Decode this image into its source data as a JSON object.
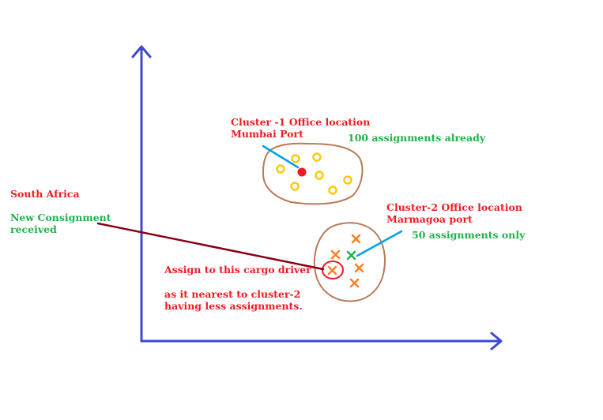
{
  "colors": {
    "axis": "#3F48CC",
    "red": "#ED1C24",
    "green": "#22B14C",
    "gold": "#FFC90E",
    "orange": "#FF7F27",
    "brown": "#B97A57",
    "maroon": "#880015",
    "blue_pointer": "#00A2E8"
  },
  "labels": {
    "cluster1_line1": "Cluster -1 Office location",
    "cluster1_line2": "Mumbai Port",
    "cluster1_count": "100 assignments already",
    "south_africa": "South Africa",
    "new_consignment_line1": "New Consignment",
    "new_consignment_line2": "received",
    "cluster2_line1": "Cluster-2 Office location",
    "cluster2_line2": "Marmagoa port",
    "cluster2_count": "50 assignments only",
    "assign_line1": "Assign to this cargo driver",
    "assign_line2": "as it nearest to cluster-2",
    "assign_line3": "having less assignments."
  }
}
